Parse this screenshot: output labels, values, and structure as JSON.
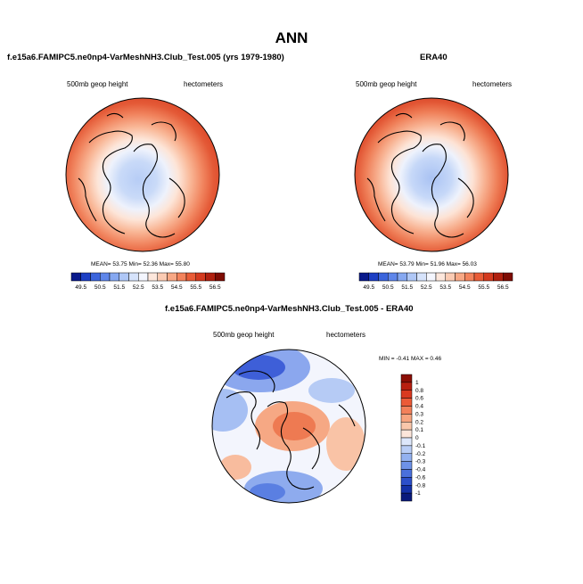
{
  "main_title": "ANN",
  "panels": {
    "top_left": {
      "title": "f.e15a6.FAMIPC5.ne0np4-VarMeshNH3.Club_Test.005 (yrs 1979-1980)",
      "variable": "500mb geop height",
      "units": "hectometers",
      "stats": {
        "mean_label": "MEAN=",
        "mean": "53.75",
        "min_label": "Min=",
        "min": "52.36",
        "max_label": "Max=",
        "max": "55.80"
      }
    },
    "top_right": {
      "title": "ERA40",
      "variable": "500mb geop height",
      "units": "hectometers",
      "stats": {
        "mean_label": "MEAN=",
        "mean": "53.79",
        "min_label": "Min=",
        "min": "51.96",
        "max_label": "Max=",
        "max": "56.03"
      }
    },
    "bottom": {
      "title": "f.e15a6.FAMIPC5.ne0np4-VarMeshNH3.Club_Test.005 - ERA40",
      "variable": "500mb geop height",
      "units": "hectometers",
      "stats_text": "MIN = -0.41 MAX =  0.46"
    }
  },
  "colorbar_abs": {
    "labels": [
      "49.5",
      "50.5",
      "51.5",
      "52.5",
      "53.5",
      "54.5",
      "55.5",
      "56.5"
    ],
    "colors": [
      "#0a1a8c",
      "#1d3fc4",
      "#3b64dc",
      "#5f86ea",
      "#86a8f1",
      "#afc7f6",
      "#d6e3fb",
      "#f4f6fe",
      "#fde7dc",
      "#fbcbb3",
      "#f8a885",
      "#f3835c",
      "#e95c37",
      "#d43a1f",
      "#b0200f",
      "#7e0c04"
    ]
  },
  "colorbar_diff": {
    "labels": [
      "1",
      "0.8",
      "0.6",
      "0.4",
      "0.3",
      "0.2",
      "0.1",
      "0",
      "-0.1",
      "-0.2",
      "-0.3",
      "-0.4",
      "-0.6",
      "-0.8",
      "-1"
    ],
    "colors": [
      "#8b0e05",
      "#b81f10",
      "#d9391f",
      "#ec5a37",
      "#f3805a",
      "#f7a47f",
      "#fac7ab",
      "#fde6da",
      "#dde7fb",
      "#b9cdf6",
      "#93b1f0",
      "#6e92e8",
      "#4a70dc",
      "#2c4fca",
      "#1431a8",
      "#0a1a7c"
    ]
  }
}
